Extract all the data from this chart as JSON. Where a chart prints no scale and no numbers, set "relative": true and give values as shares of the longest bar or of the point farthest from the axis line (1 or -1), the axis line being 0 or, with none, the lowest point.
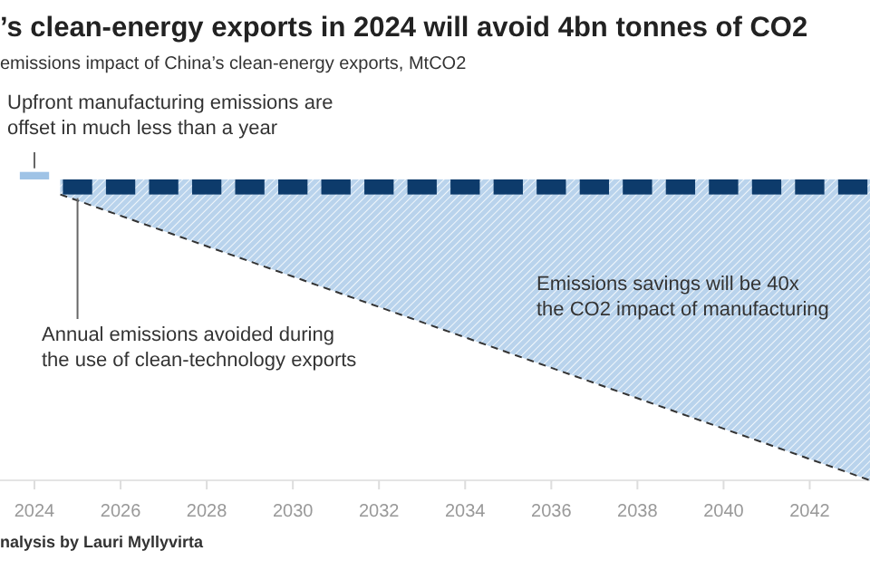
{
  "chart_data": {
    "type": "bar",
    "relative": true,
    "title": "’s clean-energy exports in 2024 will avoid 4bn tonnes of CO2",
    "subtitle": "emissions impact of China’s clean-energy exports, MtCO2",
    "xlim": [
      2023.2,
      2043.4
    ],
    "xticks": [
      2024,
      2026,
      2028,
      2030,
      2032,
      2034,
      2036,
      2038,
      2040,
      2042
    ],
    "series": [
      {
        "type": "area",
        "color": "#b9d3ec",
        "line_style": "dashed",
        "x": [
          2024.6,
          2043.4
        ],
        "values": [
          -0.05,
          -1
        ]
      },
      {
        "type": "bar",
        "color": "#9fc3e6",
        "x": [
          2024
        ],
        "values": [
          0.025
        ]
      },
      {
        "type": "bar",
        "color": "#0d3b6b",
        "x": [
          2025,
          2026,
          2027,
          2028,
          2029,
          2030,
          2031,
          2032,
          2033,
          2034,
          2035,
          2036,
          2037,
          2038,
          2039,
          2040,
          2041,
          2042,
          2043
        ],
        "values": [
          -0.05,
          -0.05,
          -0.05,
          -0.05,
          -0.05,
          -0.05,
          -0.05,
          -0.05,
          -0.05,
          -0.05,
          -0.05,
          -0.05,
          -0.05,
          -0.05,
          -0.05,
          -0.05,
          -0.05,
          -0.05,
          -0.05
        ]
      }
    ],
    "annotations": [
      {
        "text": "Upfront manufacturing emissions are offset in much less than a year",
        "x": 2024,
        "y": 0.025
      },
      {
        "text": "Annual emissions avoided during the use of clean-technology exports",
        "x": 2025,
        "y": -0.05
      },
      "Emissions savings will be 40x the CO2 impact of manufacturing",
      "nalysis by Lauri Myllyvirta"
    ]
  }
}
